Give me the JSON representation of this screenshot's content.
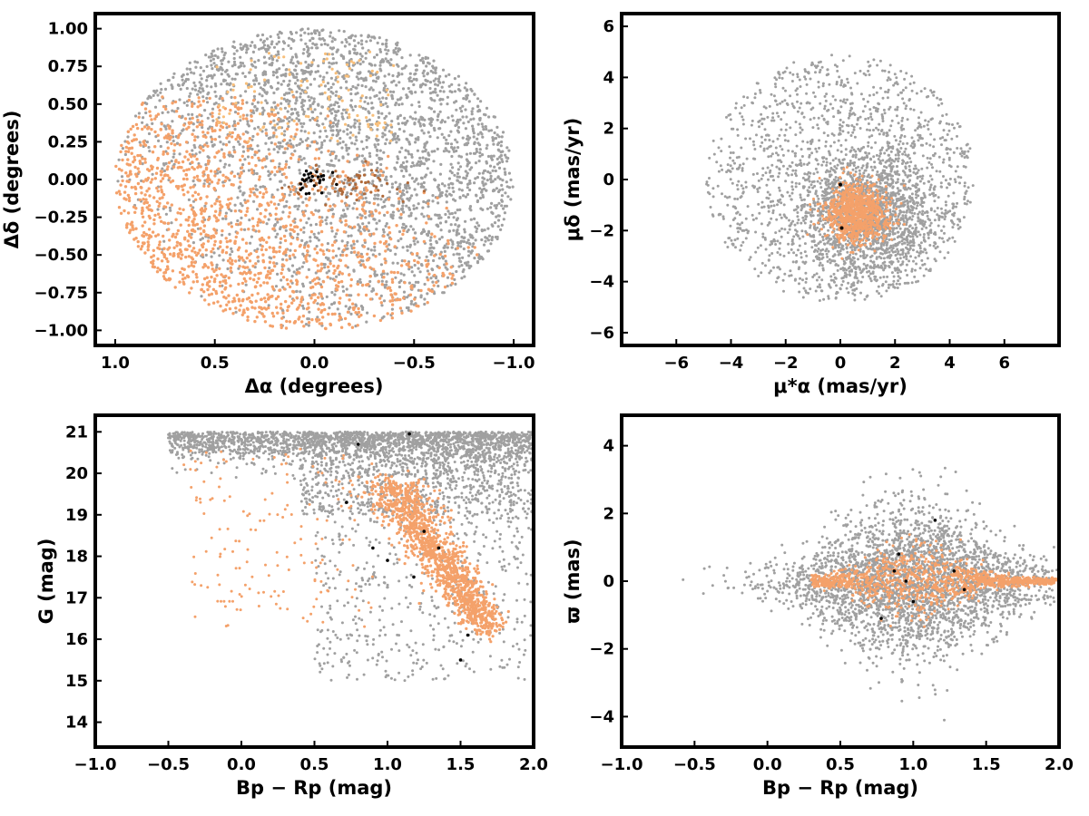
{
  "colors": {
    "field_stars": "#a0a0a0",
    "members": "#f4a16a",
    "members_light": "#f8bf7a",
    "members_dark": "#b06a3a",
    "special": "#000000"
  },
  "chart_data": [
    {
      "id": "sky",
      "type": "scatter",
      "title": "",
      "xlabel": "Δα (degrees)",
      "ylabel": "Δδ (degrees)",
      "xlim": [
        1.1,
        -1.1
      ],
      "ylim": [
        -1.1,
        1.1
      ],
      "x_inverted": true,
      "xticks": [
        1.0,
        0.5,
        0.0,
        -0.5,
        -1.0
      ],
      "xtick_labels": [
        "1.0",
        "0.5",
        "0.0",
        "−0.5",
        "−1.0"
      ],
      "yticks": [
        1.0,
        0.75,
        0.5,
        0.25,
        0.0,
        -0.25,
        -0.5,
        -0.75,
        -1.0
      ],
      "ytick_labels": [
        "1.00",
        "0.75",
        "0.50",
        "0.25",
        "0.00",
        "−0.25",
        "−0.50",
        "−0.75",
        "−1.00"
      ],
      "grid": false,
      "series": [
        {
          "role": "field",
          "color_key": "field_stars",
          "distribution": "uniform disk radius 1.0 deg centered (0,0)"
        },
        {
          "role": "members",
          "color_key": "members",
          "distribution": "concentrated on lower-left half of field (Δα > 0, Δδ < 0.3)"
        },
        {
          "role": "special",
          "color_key": "special",
          "distribution": "small group near (0.0, 0.0)"
        }
      ]
    },
    {
      "id": "proper_motion",
      "type": "scatter",
      "title": "",
      "xlabel": "μ*α  (mas/yr)",
      "ylabel": "μδ (mas/yr)",
      "xlim": [
        -8,
        8
      ],
      "ylim": [
        -6.5,
        6.5
      ],
      "xticks": [
        -6,
        -4,
        -2,
        0,
        2,
        4,
        6
      ],
      "xtick_labels": [
        "−6",
        "−4",
        "−2",
        "0",
        "2",
        "4",
        "6"
      ],
      "yticks": [
        6,
        4,
        2,
        0,
        -2,
        -4,
        -6
      ],
      "ytick_labels": [
        "6",
        "4",
        "2",
        "0",
        "−2",
        "−4",
        "−6"
      ],
      "grid": false,
      "series": [
        {
          "role": "field",
          "color_key": "field_stars",
          "distribution": "disk radius ~5 mas/yr, concentrated near (1, -1.3)"
        },
        {
          "role": "members",
          "color_key": "members",
          "center": [
            0.6,
            -1.3
          ],
          "spread": 0.55
        },
        {
          "role": "special",
          "color_key": "special",
          "points": [
            [
              0.0,
              -0.2
            ],
            [
              0.05,
              -1.9
            ]
          ]
        }
      ]
    },
    {
      "id": "cmd",
      "type": "scatter",
      "title": "",
      "xlabel": "Bp − Rp (mag)",
      "ylabel": "G (mag)",
      "xlim": [
        -1.0,
        2.0
      ],
      "ylim": [
        13.4,
        21.4
      ],
      "y_inverted": false,
      "xticks": [
        -1.0,
        -0.5,
        0.0,
        0.5,
        1.0,
        1.5,
        2.0
      ],
      "xtick_labels": [
        "−1.0",
        "−0.5",
        "0.0",
        "0.5",
        "1.0",
        "1.5",
        "2.0"
      ],
      "yticks": [
        21,
        20,
        19,
        18,
        17,
        16,
        15,
        14
      ],
      "ytick_labels": [
        "21",
        "20",
        "19",
        "18",
        "17",
        "16",
        "15",
        "14"
      ],
      "grid": false,
      "series": [
        {
          "role": "field",
          "color_key": "field_stars",
          "distribution": "broad band G 16-21, dense near G 20.5-21"
        },
        {
          "role": "members",
          "color_key": "members",
          "distribution": "sequence from (1.0, 19.7) to (1.7, 16.3)"
        },
        {
          "role": "special",
          "color_key": "special",
          "points": [
            [
              0.8,
              20.7
            ],
            [
              1.15,
              20.95
            ],
            [
              0.9,
              18.2
            ],
            [
              1.0,
              17.9
            ],
            [
              1.25,
              18.6
            ],
            [
              1.18,
              17.5
            ],
            [
              1.5,
              15.5
            ],
            [
              1.55,
              16.1
            ],
            [
              0.72,
              19.3
            ],
            [
              1.35,
              18.2
            ]
          ]
        }
      ]
    },
    {
      "id": "parallax",
      "type": "scatter",
      "title": "",
      "xlabel": "Bp − Rp (mag)",
      "ylabel": "ϖ (mas)",
      "xlim": [
        -1.0,
        2.0
      ],
      "ylim": [
        -4.9,
        4.9
      ],
      "xticks": [
        -1.0,
        -0.5,
        0.0,
        0.5,
        1.0,
        1.5,
        2.0
      ],
      "xtick_labels": [
        "−1.0",
        "−0.5",
        "0.0",
        "0.5",
        "1.0",
        "1.5",
        "2.0"
      ],
      "yticks": [
        4,
        2,
        0,
        -2,
        -4
      ],
      "ytick_labels": [
        "4",
        "2",
        "0",
        "−2",
        "−4"
      ],
      "grid": false,
      "series": [
        {
          "role": "field",
          "color_key": "field_stars",
          "distribution": "centered ϖ=0, spread ~1 mas, widest near Bp−Rp 1.0"
        },
        {
          "role": "members",
          "color_key": "members",
          "distribution": "narrowing band around ϖ≈0 from 0.3 to 2.0"
        },
        {
          "role": "special",
          "color_key": "special",
          "points": [
            [
              0.9,
              0.8
            ],
            [
              0.87,
              0.3
            ],
            [
              1.0,
              -0.6
            ],
            [
              0.78,
              -1.1
            ],
            [
              1.15,
              1.8
            ],
            [
              1.35,
              -0.25
            ],
            [
              1.28,
              0.3
            ],
            [
              0.95,
              0.0
            ]
          ]
        }
      ]
    }
  ]
}
